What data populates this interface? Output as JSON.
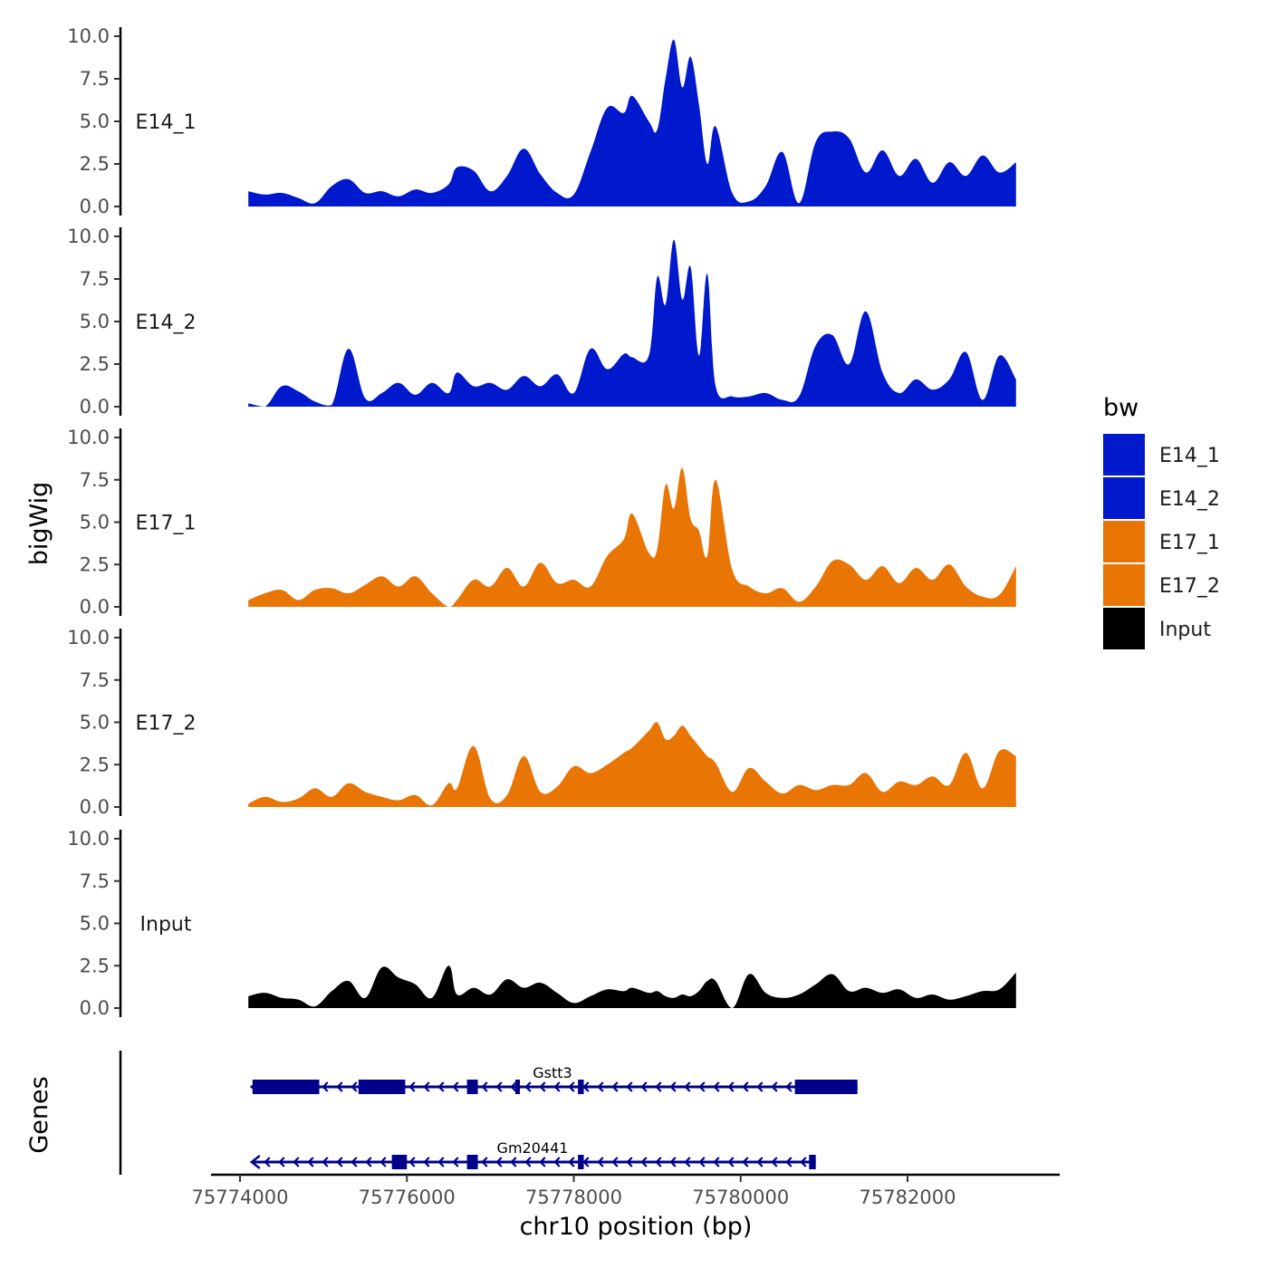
{
  "chart_data": {
    "type": "area",
    "title": "",
    "xlabel": "chr10 position (bp)",
    "ylabel": "bigWig",
    "genes_label": "Genes",
    "xlim": [
      75773800,
      75783900
    ],
    "xticks": [
      75774000,
      75776000,
      75778000,
      75780000,
      75782000
    ],
    "xtick_labels": [
      "75774000",
      "75776000",
      "75778000",
      "75780000",
      "75782000"
    ],
    "ylim": [
      0,
      10
    ],
    "yticks": [
      0,
      2.5,
      5,
      7.5,
      10
    ],
    "ytick_labels": [
      "0.0",
      "2.5",
      "5.0",
      "7.5",
      "10.0"
    ],
    "legend": {
      "title": "bw",
      "position": "right",
      "entries": [
        {
          "name": "E14_1",
          "color": "#0019CC"
        },
        {
          "name": "E14_2",
          "color": "#0019CC"
        },
        {
          "name": "E17_1",
          "color": "#E87504"
        },
        {
          "name": "E17_2",
          "color": "#E87504"
        },
        {
          "name": "Input",
          "color": "#000000"
        }
      ]
    },
    "series": [
      {
        "name": "E14_1",
        "color": "#0019CC",
        "x": [
          75774100,
          75774300,
          75774500,
          75774700,
          75774900,
          75775100,
          75775300,
          75775500,
          75775700,
          75775900,
          75776100,
          75776300,
          75776500,
          75776600,
          75776800,
          75777000,
          75777200,
          75777400,
          75777600,
          75777800,
          75778000,
          75778200,
          75778400,
          75778600,
          75778700,
          75778900,
          75779000,
          75779100,
          75779200,
          75779300,
          75779400,
          75779500,
          75779600,
          75779700,
          75779900,
          75780100,
          75780300,
          75780500,
          75780700,
          75780900,
          75781100,
          75781300,
          75781500,
          75781700,
          75781900,
          75782100,
          75782300,
          75782500,
          75782700,
          75782900,
          75783100,
          75783300
        ],
        "values": [
          0.9,
          0.7,
          0.8,
          0.5,
          0.2,
          1.2,
          1.6,
          0.8,
          0.9,
          0.6,
          1.0,
          0.8,
          1.3,
          2.3,
          2.1,
          0.9,
          1.8,
          3.4,
          1.9,
          0.8,
          0.7,
          3.2,
          5.8,
          5.5,
          6.5,
          5.0,
          4.5,
          7.5,
          9.8,
          7.0,
          8.8,
          6.0,
          2.5,
          4.7,
          0.8,
          0.3,
          1.2,
          3.2,
          0.2,
          3.8,
          4.4,
          4.0,
          2.0,
          3.3,
          1.8,
          2.8,
          1.4,
          2.6,
          1.8,
          3.0,
          2.0,
          2.6
        ]
      },
      {
        "name": "E14_2",
        "color": "#0019CC",
        "x": [
          75774100,
          75774300,
          75774500,
          75774700,
          75774900,
          75775100,
          75775300,
          75775500,
          75775700,
          75775900,
          75776100,
          75776300,
          75776500,
          75776600,
          75776800,
          75777000,
          75777200,
          75777400,
          75777600,
          75777800,
          75778000,
          75778200,
          75778400,
          75778600,
          75778700,
          75778900,
          75779000,
          75779100,
          75779200,
          75779300,
          75779400,
          75779500,
          75779600,
          75779700,
          75779900,
          75780100,
          75780300,
          75780500,
          75780700,
          75780900,
          75781100,
          75781300,
          75781500,
          75781700,
          75781900,
          75782100,
          75782300,
          75782500,
          75782700,
          75782900,
          75783100,
          75783300
        ],
        "values": [
          0.2,
          0.0,
          1.2,
          0.9,
          0.3,
          0.1,
          3.4,
          0.5,
          0.8,
          1.4,
          0.7,
          1.4,
          0.8,
          2.0,
          1.2,
          1.4,
          1.0,
          1.8,
          1.2,
          1.9,
          0.8,
          3.4,
          2.2,
          3.1,
          2.9,
          3.0,
          7.6,
          6.0,
          9.8,
          6.3,
          8.2,
          3.0,
          7.8,
          1.2,
          0.6,
          0.6,
          0.8,
          0.4,
          0.6,
          3.6,
          4.2,
          2.5,
          5.6,
          2.0,
          0.8,
          1.6,
          1.0,
          1.6,
          3.2,
          0.4,
          3.0,
          1.6
        ]
      },
      {
        "name": "E17_1",
        "color": "#E87504",
        "x": [
          75774100,
          75774300,
          75774500,
          75774700,
          75774900,
          75775100,
          75775300,
          75775500,
          75775700,
          75775900,
          75776100,
          75776300,
          75776500,
          75776600,
          75776800,
          75777000,
          75777200,
          75777400,
          75777600,
          75777800,
          75778000,
          75778200,
          75778400,
          75778600,
          75778700,
          75778900,
          75779000,
          75779100,
          75779200,
          75779300,
          75779400,
          75779500,
          75779600,
          75779700,
          75779900,
          75780100,
          75780300,
          75780500,
          75780700,
          75780900,
          75781100,
          75781300,
          75781500,
          75781700,
          75781900,
          75782100,
          75782300,
          75782500,
          75782700,
          75782900,
          75783100,
          75783300
        ],
        "values": [
          0.4,
          0.8,
          1.0,
          0.4,
          1.0,
          1.1,
          0.8,
          1.3,
          1.8,
          1.2,
          1.8,
          0.8,
          0.0,
          0.4,
          1.6,
          1.2,
          2.3,
          1.2,
          2.6,
          1.4,
          1.6,
          1.2,
          3.0,
          4.0,
          5.5,
          3.2,
          3.4,
          7.2,
          5.8,
          8.2,
          5.2,
          4.5,
          3.0,
          7.5,
          2.2,
          1.2,
          0.8,
          1.1,
          0.3,
          1.2,
          2.7,
          2.5,
          1.6,
          2.4,
          1.4,
          2.3,
          1.6,
          2.5,
          1.2,
          0.6,
          0.7,
          2.4
        ]
      },
      {
        "name": "E17_2",
        "color": "#E87504",
        "x": [
          75774100,
          75774300,
          75774500,
          75774700,
          75774900,
          75775100,
          75775300,
          75775500,
          75775700,
          75775900,
          75776100,
          75776300,
          75776500,
          75776600,
          75776800,
          75777000,
          75777200,
          75777400,
          75777600,
          75777800,
          75778000,
          75778200,
          75778400,
          75778600,
          75778700,
          75778900,
          75779000,
          75779100,
          75779200,
          75779300,
          75779400,
          75779500,
          75779600,
          75779700,
          75779900,
          75780100,
          75780300,
          75780500,
          75780700,
          75780900,
          75781100,
          75781300,
          75781500,
          75781700,
          75781900,
          75782100,
          75782300,
          75782500,
          75782700,
          75782900,
          75783100,
          75783300
        ],
        "values": [
          0.2,
          0.6,
          0.3,
          0.5,
          1.1,
          0.6,
          1.4,
          0.9,
          0.6,
          0.4,
          0.7,
          0.1,
          1.4,
          1.1,
          3.6,
          0.5,
          0.7,
          3.0,
          0.9,
          1.2,
          2.4,
          2.0,
          2.5,
          3.2,
          3.5,
          4.5,
          5.0,
          4.0,
          4.2,
          4.8,
          4.2,
          3.6,
          3.0,
          2.6,
          0.9,
          2.3,
          1.5,
          0.8,
          1.3,
          1.0,
          1.3,
          1.3,
          2.0,
          0.9,
          1.5,
          1.3,
          1.8,
          1.3,
          3.2,
          1.1,
          3.3,
          3.0
        ]
      },
      {
        "name": "Input",
        "color": "#000000",
        "x": [
          75774100,
          75774300,
          75774500,
          75774700,
          75774900,
          75775100,
          75775300,
          75775500,
          75775700,
          75775900,
          75776100,
          75776300,
          75776500,
          75776600,
          75776800,
          75777000,
          75777200,
          75777400,
          75777600,
          75777800,
          75778000,
          75778200,
          75778400,
          75778600,
          75778700,
          75778900,
          75779000,
          75779100,
          75779200,
          75779300,
          75779400,
          75779500,
          75779600,
          75779700,
          75779900,
          75780100,
          75780300,
          75780500,
          75780700,
          75780900,
          75781100,
          75781300,
          75781500,
          75781700,
          75781900,
          75782100,
          75782300,
          75782500,
          75782700,
          75782900,
          75783100,
          75783300
        ],
        "values": [
          0.7,
          0.9,
          0.6,
          0.5,
          0.1,
          1.0,
          1.6,
          0.6,
          2.4,
          1.8,
          1.4,
          0.6,
          2.5,
          0.8,
          1.2,
          0.8,
          1.7,
          1.2,
          1.5,
          0.9,
          0.3,
          0.7,
          1.1,
          1.0,
          1.2,
          0.9,
          1.0,
          0.7,
          0.6,
          0.8,
          0.7,
          1.0,
          1.6,
          1.6,
          0.0,
          2.0,
          0.9,
          0.6,
          0.8,
          1.4,
          2.0,
          1.0,
          1.2,
          0.9,
          1.1,
          0.6,
          0.8,
          0.5,
          0.7,
          1.0,
          1.1,
          2.1
        ]
      }
    ],
    "genes": [
      {
        "name": "Gstt3",
        "strand": "-",
        "start": 75774150,
        "end": 75781400,
        "exons": [
          [
            75774150,
            75774950
          ],
          [
            75775420,
            75775980
          ],
          [
            75776720,
            75776850
          ],
          [
            75777300,
            75777340
          ],
          [
            75778050,
            75778120
          ],
          [
            75780650,
            75781400
          ]
        ]
      },
      {
        "name": "Gm20441",
        "strand": "-",
        "start": 75774150,
        "end": 75780900,
        "exons": [
          [
            75775820,
            75776000
          ],
          [
            75776720,
            75776850
          ],
          [
            75778050,
            75778120
          ],
          [
            75780820,
            75780900
          ]
        ]
      }
    ]
  }
}
